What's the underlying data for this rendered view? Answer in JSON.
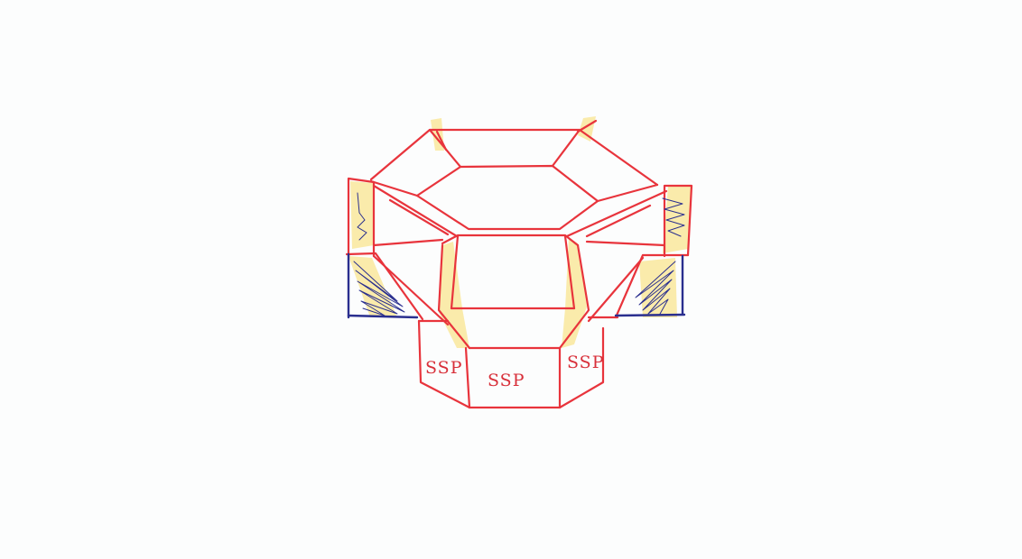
{
  "labels": {
    "left": "SSP",
    "center": "SSP",
    "right": "SSP"
  },
  "colors": {
    "background": "#fcfdfd",
    "outline": "#e8343c",
    "highlight": "#f7dd68",
    "ink": "#2a2f8f",
    "label": "#d8303a"
  }
}
